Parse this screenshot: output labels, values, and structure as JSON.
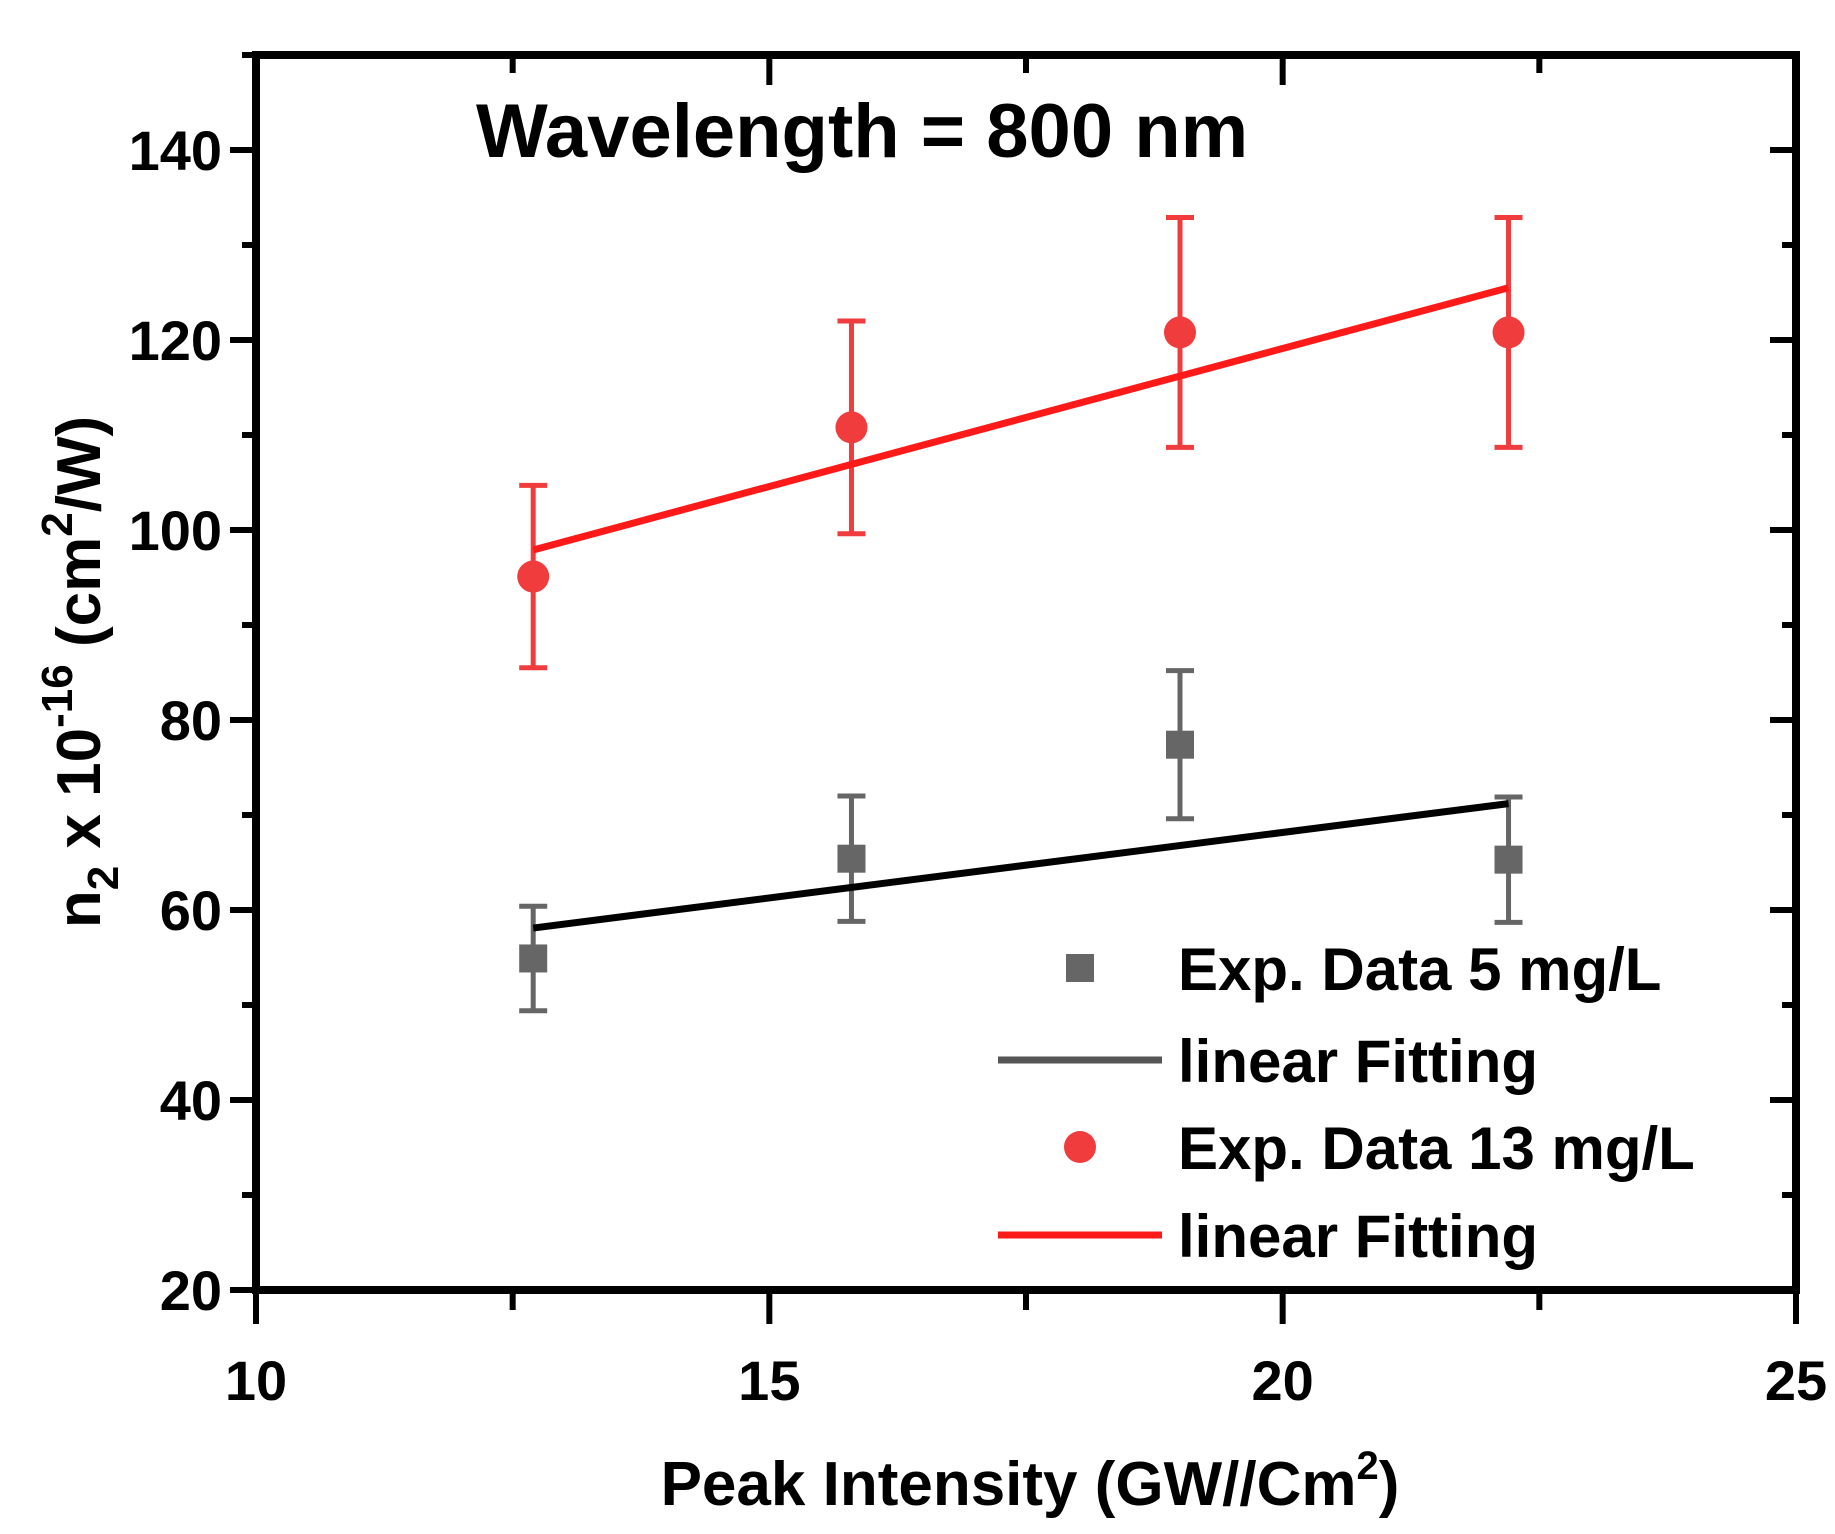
{
  "chart_data": {
    "type": "scatter",
    "title": "Wavelength = 800 nm",
    "xlabel": "Peak Intensity (GW//Cm",
    "xlabel_sup": "2",
    "xlabel_end": ")",
    "ylabel_parts": {
      "n": "n",
      "sub": "2",
      "mid": " x 10",
      "sup": "-16",
      "unit": " (cm",
      "unit_sup": "2",
      "unit_end": "/W)"
    },
    "xlim": [
      10,
      25
    ],
    "ylim": [
      20,
      150
    ],
    "xticks": [
      "10",
      "15",
      "20",
      "25"
    ],
    "yticks": [
      "20",
      "40",
      "60",
      "80",
      "100",
      "120",
      "140"
    ],
    "legend_position": "bottom-right",
    "series": [
      {
        "name": "Exp. Data 5 mg/L",
        "kind": "points",
        "marker": "square",
        "color": "#666666",
        "x": [
          12.7,
          15.8,
          19.0,
          22.2
        ],
        "y": [
          54.9,
          65.4,
          77.4,
          65.3
        ],
        "err": [
          5.5,
          6.6,
          7.8,
          6.6
        ]
      },
      {
        "name": "linear Fitting",
        "kind": "line",
        "color": "#000000",
        "legend_color": "#555555",
        "x": [
          12.7,
          22.2
        ],
        "y": [
          58.1,
          71.2
        ]
      },
      {
        "name": "Exp. Data 13 mg/L",
        "kind": "points",
        "marker": "circle",
        "color": "#f03c3c",
        "x": [
          12.7,
          15.8,
          19.0,
          22.2
        ],
        "y": [
          95.1,
          110.8,
          120.8,
          120.8
        ],
        "err": [
          9.6,
          11.2,
          12.1,
          12.1
        ]
      },
      {
        "name": "linear Fitting",
        "kind": "line",
        "color": "#ff1a1a",
        "legend_color": "#ff1a1a",
        "x": [
          12.7,
          22.2
        ],
        "y": [
          97.9,
          125.5
        ]
      }
    ]
  }
}
